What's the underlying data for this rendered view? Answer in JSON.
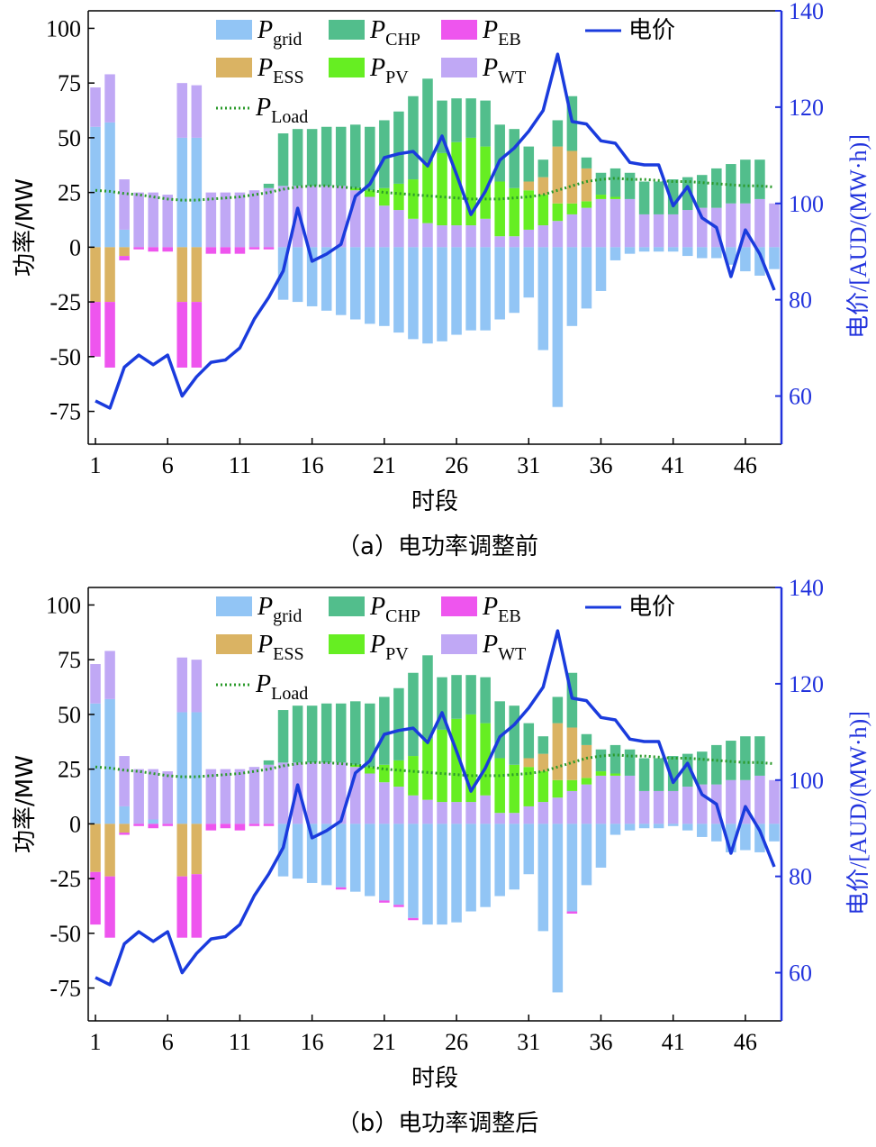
{
  "chart_data": [
    {
      "type": "bar",
      "caption": "（a）电功率调整前",
      "xlabel": "时段",
      "ylabel": "功率/MW",
      "y2label": "电价/[AUD/(MW·h)]",
      "ylim": [
        -90,
        108
      ],
      "y2lim": [
        50,
        140
      ],
      "yticks": [
        100,
        75,
        50,
        25,
        0,
        -25,
        -50,
        -75
      ],
      "y2ticks": [
        140,
        120,
        100,
        80,
        60
      ],
      "xticks": [
        1,
        6,
        11,
        16,
        21,
        26,
        31,
        36,
        41,
        46
      ],
      "x": [
        1,
        2,
        3,
        4,
        5,
        6,
        7,
        8,
        9,
        10,
        11,
        12,
        13,
        14,
        15,
        16,
        17,
        18,
        19,
        20,
        21,
        22,
        23,
        24,
        25,
        26,
        27,
        28,
        29,
        30,
        31,
        32,
        33,
        34,
        35,
        36,
        37,
        38,
        39,
        40,
        41,
        42,
        43,
        44,
        45,
        46,
        47,
        48
      ],
      "legend": [
        {
          "key": "grid",
          "main": "P",
          "sub": "grid",
          "color": "#92c5f5"
        },
        {
          "key": "chp",
          "main": "P",
          "sub": "CHP",
          "color": "#52be8c"
        },
        {
          "key": "eb",
          "main": "P",
          "sub": "EB",
          "color": "#ee55ee"
        },
        {
          "key": "price",
          "main": "电价",
          "sub": "",
          "color": "#1a3bdd"
        },
        {
          "key": "ess",
          "main": "P",
          "sub": "ESS",
          "color": "#dab363"
        },
        {
          "key": "pv",
          "main": "P",
          "sub": "PV",
          "color": "#66ee22"
        },
        {
          "key": "wt",
          "main": "P",
          "sub": "WT",
          "color": "#c0a8f5"
        },
        {
          "key": "load",
          "main": "P",
          "sub": "Load",
          "color": "#2a9a2a"
        }
      ],
      "series": [
        {
          "name": "P_grid",
          "values": [
            55,
            57,
            8,
            0,
            0,
            0,
            50,
            50,
            0,
            0,
            0,
            0,
            0,
            -24,
            -25,
            -27,
            -29,
            -31,
            -33,
            -35,
            -36,
            -39,
            -42,
            -44,
            -43,
            -40,
            -38,
            -38,
            -33,
            -30,
            -23,
            -47,
            -73,
            -36,
            -28,
            -20,
            -6,
            -3,
            -2,
            -2,
            -2,
            -4,
            -5,
            -5,
            -8,
            -11,
            -13,
            -10
          ]
        },
        {
          "name": "P_ESS",
          "values": [
            -25,
            -25,
            -4,
            0,
            0,
            0,
            -25,
            -25,
            0,
            0,
            0,
            0,
            0,
            0,
            0,
            0,
            0,
            0,
            0,
            0,
            0,
            0,
            0,
            0,
            0,
            0,
            0,
            0,
            0,
            0,
            4,
            8,
            26,
            24,
            15,
            0,
            0,
            0,
            0,
            0,
            0,
            0,
            0,
            0,
            0,
            0,
            0,
            0
          ]
        },
        {
          "name": "P_EB",
          "values": [
            -25,
            -30,
            -2,
            -1,
            -2,
            -2,
            -30,
            -30,
            -3,
            -3,
            -3,
            -1,
            -1,
            0,
            0,
            0,
            0,
            0,
            0,
            0,
            0,
            0,
            0,
            0,
            0,
            0,
            0,
            0,
            0,
            0,
            0,
            0,
            0,
            0,
            0,
            0,
            0,
            0,
            0,
            0,
            0,
            0,
            0,
            0,
            0,
            0,
            0,
            0
          ]
        },
        {
          "name": "P_PV",
          "values": [
            0,
            0,
            0,
            0,
            0,
            0,
            0,
            0,
            0,
            0,
            0,
            0,
            0,
            0,
            0,
            0,
            0,
            0,
            1,
            3,
            8,
            12,
            18,
            28,
            33,
            38,
            40,
            33,
            25,
            22,
            18,
            14,
            8,
            5,
            3,
            2,
            1,
            0,
            0,
            0,
            0,
            0,
            0,
            0,
            0,
            0,
            0,
            0
          ]
        },
        {
          "name": "P_WT",
          "values": [
            18,
            22,
            23,
            25,
            25,
            24,
            25,
            24,
            25,
            25,
            25,
            26,
            27,
            28,
            28,
            28,
            28,
            28,
            26,
            23,
            19,
            17,
            13,
            11,
            10,
            10,
            10,
            13,
            5,
            5,
            8,
            10,
            12,
            15,
            18,
            22,
            22,
            22,
            15,
            15,
            15,
            17,
            18,
            18,
            20,
            20,
            22,
            20
          ]
        },
        {
          "name": "P_CHP",
          "values": [
            0,
            0,
            0,
            0,
            0,
            0,
            0,
            0,
            0,
            0,
            0,
            0,
            2,
            24,
            26,
            26,
            27,
            27,
            29,
            29,
            31,
            33,
            38,
            38,
            24,
            20,
            18,
            21,
            26,
            27,
            16,
            8,
            12,
            25,
            5,
            10,
            13,
            12,
            15,
            15,
            16,
            15,
            15,
            18,
            18,
            20,
            18,
            0
          ]
        },
        {
          "name": "P_Load",
          "type": "line",
          "values": [
            26,
            25.5,
            24.5,
            24,
            23,
            22,
            21.5,
            21.5,
            22,
            22.5,
            23,
            24,
            25,
            26.5,
            27.5,
            28,
            28,
            27.5,
            27,
            26,
            25,
            24.5,
            24,
            23.5,
            23,
            22.5,
            22,
            22,
            22,
            22.5,
            23,
            24,
            26,
            28,
            30,
            31,
            31.5,
            31,
            31,
            30.5,
            30,
            30,
            29.5,
            29,
            28.5,
            28,
            28,
            27.5
          ]
        },
        {
          "name": "电价",
          "axis": "y2",
          "values": [
            59,
            57.5,
            66,
            68.5,
            66.5,
            68.5,
            60,
            64,
            67,
            67.5,
            70,
            76,
            80.5,
            86,
            99,
            88,
            89.5,
            91.5,
            101.5,
            104,
            109.5,
            110.3,
            110.8,
            107.8,
            114,
            106,
            97.7,
            102.5,
            109,
            111.5,
            115,
            119.3,
            131,
            117,
            116.5,
            113,
            112.5,
            108.5,
            108,
            108,
            99.5,
            103.5,
            97,
            95,
            84.8,
            94.5,
            89.5,
            82
          ]
        }
      ]
    },
    {
      "type": "bar",
      "caption": "（b）电功率调整后",
      "xlabel": "时段",
      "ylabel": "功率/MW",
      "y2label": "电价/[AUD/(MW·h)]",
      "ylim": [
        -90,
        108
      ],
      "y2lim": [
        50,
        140
      ],
      "yticks": [
        100,
        75,
        50,
        25,
        0,
        -25,
        -50,
        -75
      ],
      "y2ticks": [
        140,
        120,
        100,
        80,
        60
      ],
      "xticks": [
        1,
        6,
        11,
        16,
        21,
        26,
        31,
        36,
        41,
        46
      ],
      "x": [
        1,
        2,
        3,
        4,
        5,
        6,
        7,
        8,
        9,
        10,
        11,
        12,
        13,
        14,
        15,
        16,
        17,
        18,
        19,
        20,
        21,
        22,
        23,
        24,
        25,
        26,
        27,
        28,
        29,
        30,
        31,
        32,
        33,
        34,
        35,
        36,
        37,
        38,
        39,
        40,
        41,
        42,
        43,
        44,
        45,
        46,
        47,
        48
      ],
      "legend": [
        {
          "key": "grid",
          "main": "P",
          "sub": "grid",
          "color": "#92c5f5"
        },
        {
          "key": "chp",
          "main": "P",
          "sub": "CHP",
          "color": "#52be8c"
        },
        {
          "key": "eb",
          "main": "P",
          "sub": "EB",
          "color": "#ee55ee"
        },
        {
          "key": "price",
          "main": "电价",
          "sub": "",
          "color": "#1a3bdd"
        },
        {
          "key": "ess",
          "main": "P",
          "sub": "ESS",
          "color": "#dab363"
        },
        {
          "key": "pv",
          "main": "P",
          "sub": "PV",
          "color": "#66ee22"
        },
        {
          "key": "wt",
          "main": "P",
          "sub": "WT",
          "color": "#c0a8f5"
        },
        {
          "key": "load",
          "main": "P",
          "sub": "Load",
          "color": "#2a9a2a"
        }
      ],
      "series": [
        {
          "name": "P_grid",
          "values": [
            55,
            57,
            8,
            0,
            2,
            0,
            51,
            51,
            0,
            0,
            0,
            0,
            0,
            -24,
            -25,
            -27,
            -28,
            -29,
            -31,
            -33,
            -35,
            -37,
            -43,
            -46,
            -46,
            -45,
            -40,
            -38,
            -33,
            -30,
            -23,
            -49,
            -77,
            -40,
            -28,
            -20,
            -5,
            -3,
            -2,
            -2,
            -1,
            -3,
            -6,
            -8,
            -13,
            -12,
            -13,
            -8
          ]
        },
        {
          "name": "P_ESS",
          "values": [
            -22,
            -24,
            -4,
            0,
            0,
            0,
            -24,
            -23,
            0,
            0,
            0,
            0,
            0,
            0,
            0,
            0,
            0,
            0,
            0,
            0,
            0,
            0,
            0,
            0,
            0,
            0,
            0,
            0,
            0,
            0,
            4,
            8,
            26,
            24,
            15,
            0,
            0,
            0,
            0,
            0,
            0,
            0,
            0,
            0,
            0,
            0,
            0,
            0
          ]
        },
        {
          "name": "P_EB",
          "values": [
            -24,
            -28,
            -1,
            -1,
            -2,
            -1,
            -28,
            -29,
            -3,
            -2,
            -3,
            -1,
            -1,
            0,
            0,
            0,
            0,
            -1,
            0,
            0,
            -1,
            -1,
            -1,
            0,
            0,
            0,
            0,
            0,
            0,
            0,
            0,
            0,
            0,
            -1,
            0,
            0,
            0,
            0,
            0,
            0,
            0,
            0,
            0,
            0,
            0,
            0,
            0,
            0
          ]
        },
        {
          "name": "P_PV",
          "values": [
            0,
            0,
            0,
            0,
            0,
            0,
            0,
            0,
            0,
            0,
            0,
            0,
            0,
            0,
            0,
            0,
            0,
            0,
            1,
            3,
            8,
            12,
            18,
            28,
            33,
            38,
            40,
            33,
            25,
            22,
            18,
            14,
            8,
            5,
            3,
            2,
            1,
            0,
            0,
            0,
            0,
            0,
            0,
            0,
            0,
            0,
            0,
            0
          ]
        },
        {
          "name": "P_WT",
          "values": [
            18,
            22,
            23,
            25,
            23,
            24,
            25,
            24,
            25,
            25,
            25,
            26,
            27,
            28,
            28,
            28,
            28,
            28,
            26,
            23,
            19,
            17,
            13,
            11,
            10,
            10,
            10,
            13,
            5,
            5,
            8,
            10,
            12,
            15,
            18,
            22,
            22,
            22,
            15,
            15,
            15,
            17,
            18,
            18,
            20,
            20,
            22,
            20
          ]
        },
        {
          "name": "P_CHP",
          "values": [
            0,
            0,
            0,
            0,
            0,
            0,
            0,
            0,
            0,
            0,
            0,
            0,
            2,
            24,
            26,
            26,
            27,
            27,
            29,
            29,
            31,
            33,
            38,
            38,
            24,
            20,
            18,
            21,
            26,
            27,
            16,
            8,
            12,
            25,
            5,
            10,
            13,
            12,
            15,
            15,
            16,
            15,
            15,
            18,
            18,
            20,
            18,
            0
          ]
        },
        {
          "name": "P_Load",
          "type": "line",
          "values": [
            26,
            25.5,
            24.5,
            24,
            23,
            22,
            21.5,
            21.5,
            22,
            22.5,
            23,
            24,
            25,
            26.5,
            27.5,
            28,
            28,
            27.5,
            27,
            26,
            25,
            24.5,
            24,
            23.5,
            23,
            22.5,
            22,
            22,
            22,
            22.5,
            23,
            24,
            26,
            28,
            30,
            31,
            31.5,
            31,
            31,
            30.5,
            30,
            30,
            29.5,
            29,
            28.5,
            28,
            28,
            27.5
          ]
        },
        {
          "name": "电价",
          "axis": "y2",
          "values": [
            59,
            57.5,
            66,
            68.5,
            66.5,
            68.5,
            60,
            64,
            67,
            67.5,
            70,
            76,
            80.5,
            86,
            99,
            88,
            89.5,
            91.5,
            101.5,
            104,
            109.5,
            110.3,
            110.8,
            107.8,
            114,
            106,
            97.7,
            102.5,
            109,
            111.5,
            115,
            119.3,
            131,
            117,
            116.5,
            113,
            112.5,
            108.5,
            108,
            108,
            99.5,
            103.5,
            97,
            95,
            84.8,
            94.5,
            89.5,
            82
          ]
        }
      ]
    }
  ]
}
